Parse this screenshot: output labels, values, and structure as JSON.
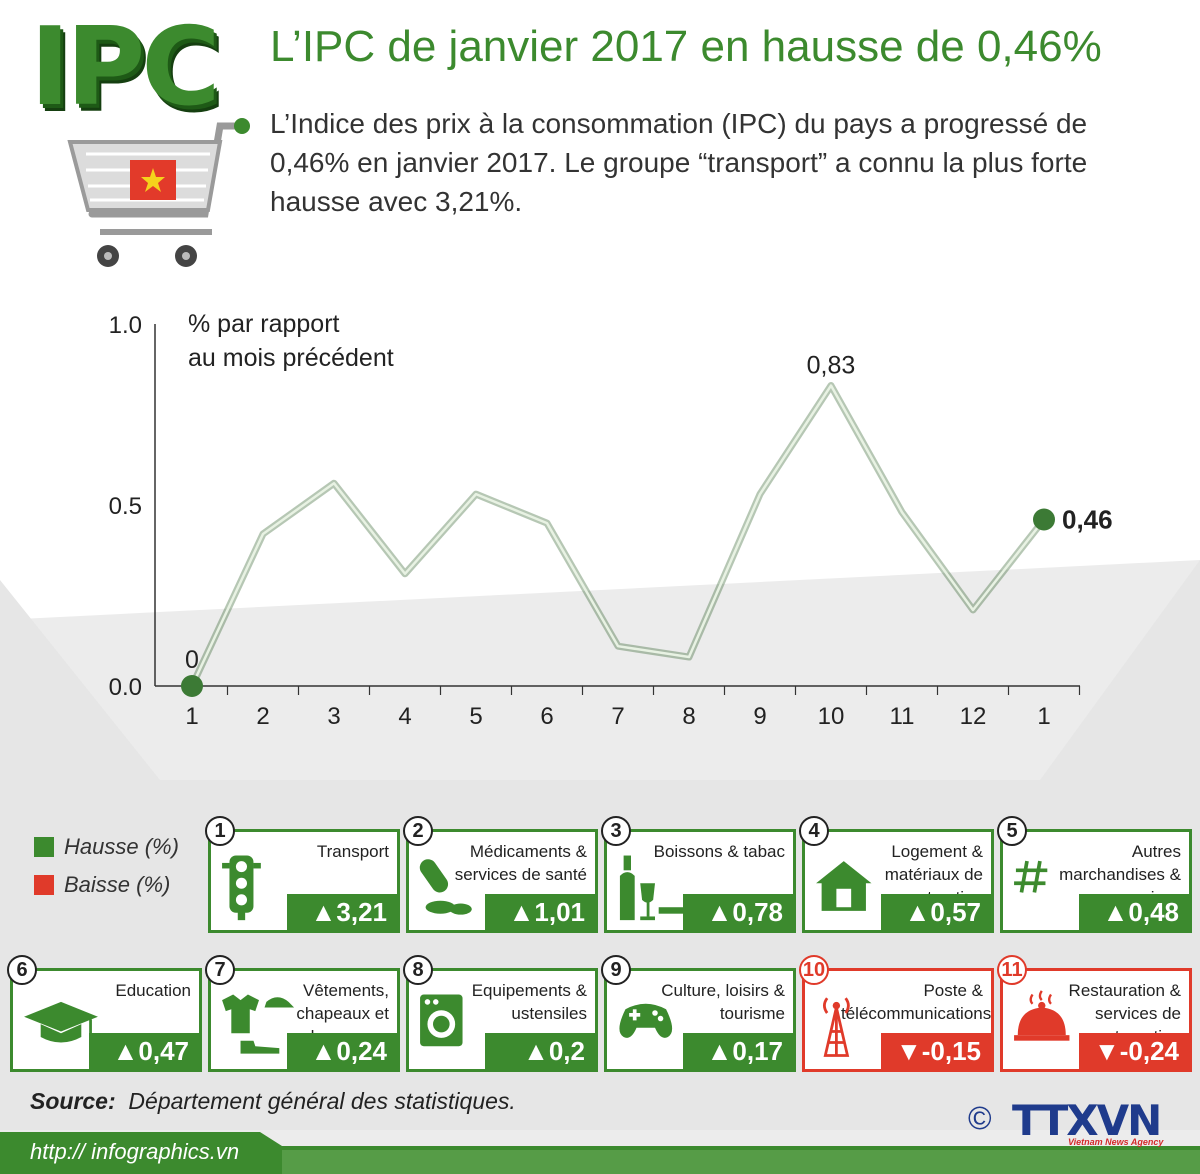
{
  "header": {
    "logo_text": "IPC",
    "title": "L’IPC de janvier 2017 en hausse de 0,46%",
    "intro": "L’Indice des prix à la consommation (IPC) du pays a progressé de 0,46% en janvier 2017.  Le groupe “transport” a connu la plus forte hausse avec 3,21%."
  },
  "chart_data": {
    "type": "line",
    "ylabel_line1": "% par rapport",
    "ylabel_line2": "au mois précédent",
    "categories": [
      "1",
      "2",
      "3",
      "4",
      "5",
      "6",
      "7",
      "8",
      "9",
      "10",
      "11",
      "12",
      "1"
    ],
    "values": [
      0,
      0.42,
      0.56,
      0.31,
      0.53,
      0.45,
      0.11,
      0.08,
      0.53,
      0.83,
      0.48,
      0.21,
      0.46
    ],
    "ylim": [
      0,
      1.0
    ],
    "yticks": [
      "0.0",
      "0.5",
      "1.0"
    ],
    "point_labels": {
      "first": "0",
      "peak": "0,83",
      "last": "0,46"
    },
    "line_color": "#5e9a52",
    "marker_color": "#3c7a35"
  },
  "legend": {
    "items": [
      {
        "label": "Hausse (%)",
        "color": "#3c8a2e"
      },
      {
        "label": "Baisse (%)",
        "color": "#e03a2a"
      }
    ]
  },
  "groups": [
    {
      "num": "1",
      "label": "Transport",
      "value": "▲3,21",
      "dir": "up",
      "icon": "traffic-light-icon"
    },
    {
      "num": "2",
      "label": "Médicaments & services de santé",
      "value": "▲1,01",
      "dir": "up",
      "icon": "pills-icon"
    },
    {
      "num": "3",
      "label": "Boissons & tabac",
      "value": "▲0,78",
      "dir": "up",
      "icon": "bottle-glass-cigarette-icon"
    },
    {
      "num": "4",
      "label": "Logement & matériaux de construction",
      "value": "▲0,57",
      "dir": "up",
      "icon": "house-icon"
    },
    {
      "num": "5",
      "label": "Autres marchandises & services",
      "value": "▲0,48",
      "dir": "up",
      "icon": "hash-icon"
    },
    {
      "num": "6",
      "label": "Education",
      "value": "▲0,47",
      "dir": "up",
      "icon": "graduation-cap-icon"
    },
    {
      "num": "7",
      "label": "Vêtements, chapeaux et chaussures",
      "value": "▲0,24",
      "dir": "up",
      "icon": "clothes-icon"
    },
    {
      "num": "8",
      "label": "Equipements & ustensiles",
      "value": "▲0,2",
      "dir": "up",
      "icon": "washing-machine-icon"
    },
    {
      "num": "9",
      "label": "Culture, loisirs & tourisme",
      "value": "▲0,17",
      "dir": "up",
      "icon": "gamepad-icon"
    },
    {
      "num": "10",
      "label": "Poste & télécommunications",
      "value": "▼-0,15",
      "dir": "down",
      "icon": "antenna-tower-icon"
    },
    {
      "num": "11",
      "label": "Restauration & services de restauration",
      "value": "▼-0,24",
      "dir": "down",
      "icon": "cloche-icon"
    }
  ],
  "footer": {
    "source_label": "Source:",
    "source_text": "Département général des statistiques.",
    "url": "http:// infographics.vn",
    "copyright": "©",
    "brand": "TTXVN",
    "brand_sub": "Vietnam News Agency"
  },
  "colors": {
    "green": "#3c8a2e",
    "red": "#e03a2a",
    "panel": "#ececec",
    "footer": "#3c8a2e"
  }
}
